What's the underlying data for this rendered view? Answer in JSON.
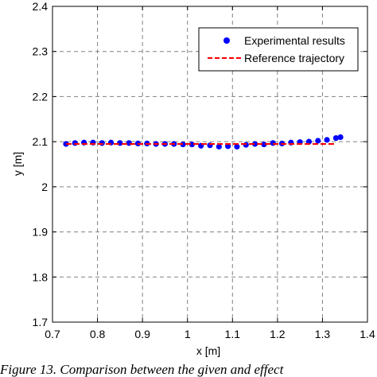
{
  "chart_data": {
    "type": "scatter",
    "xlabel": "x [m]",
    "ylabel": "y [m]",
    "xlim": [
      0.7,
      1.4
    ],
    "ylim": [
      1.7,
      2.4
    ],
    "xticks": [
      "0.7",
      "0.8",
      "0.9",
      "1",
      "1.1",
      "1.2",
      "1.3",
      "1.4"
    ],
    "yticks": [
      "1.7",
      "1.8",
      "1.9",
      "2",
      "2.1",
      "2.2",
      "2.3",
      "2.4"
    ],
    "grid": true,
    "legend_position": "top-right",
    "series": [
      {
        "name": "Experimental results",
        "style": "markers",
        "color": "#0000ff",
        "x": [
          0.73,
          0.75,
          0.77,
          0.79,
          0.81,
          0.83,
          0.85,
          0.87,
          0.89,
          0.91,
          0.93,
          0.95,
          0.97,
          0.99,
          1.01,
          1.03,
          1.05,
          1.07,
          1.09,
          1.11,
          1.13,
          1.15,
          1.17,
          1.19,
          1.21,
          1.23,
          1.25,
          1.27,
          1.29,
          1.31,
          1.33,
          1.34
        ],
        "y": [
          2.095,
          2.097,
          2.098,
          2.098,
          2.097,
          2.098,
          2.097,
          2.097,
          2.096,
          2.096,
          2.095,
          2.095,
          2.095,
          2.094,
          2.094,
          2.091,
          2.092,
          2.089,
          2.09,
          2.089,
          2.093,
          2.095,
          2.094,
          2.097,
          2.096,
          2.098,
          2.099,
          2.1,
          2.102,
          2.104,
          2.108,
          2.11
        ]
      },
      {
        "name": "Reference trajectory",
        "style": "dashed",
        "color": "#ff0000",
        "x": [
          0.73,
          1.33
        ],
        "y": [
          2.095,
          2.095
        ]
      }
    ]
  },
  "caption": "Figure 13. Comparison between the given and effect"
}
